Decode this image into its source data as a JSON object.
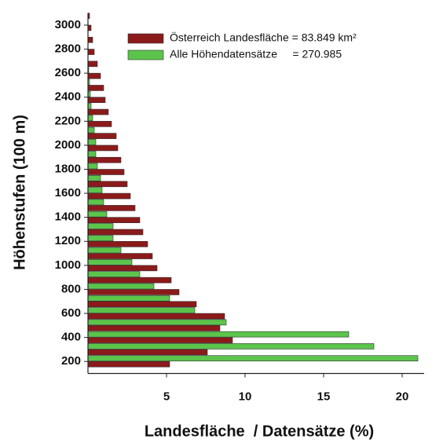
{
  "chart_data": {
    "type": "hbar",
    "xlabel": "Landesfläche  / Datensätze (%)",
    "ylabel": "Höhenstufen (100 m)",
    "y": [
      200,
      300,
      400,
      500,
      600,
      700,
      800,
      900,
      1000,
      1100,
      1200,
      1300,
      1400,
      1500,
      1600,
      1700,
      1800,
      1900,
      2000,
      2100,
      2200,
      2300,
      2400,
      2500,
      2600,
      2700,
      2800,
      2900,
      3000,
      3100
    ],
    "series": [
      {
        "name": "Österreich Landesfläche = 83.849 km²",
        "color": "#8b1a1a",
        "values": [
          5.2,
          7.6,
          9.2,
          8.4,
          8.7,
          6.9,
          5.8,
          5.3,
          4.4,
          4.1,
          3.8,
          3.5,
          3.3,
          3.0,
          2.7,
          2.5,
          2.3,
          2.1,
          1.9,
          1.8,
          1.5,
          1.3,
          1.1,
          1.0,
          0.8,
          0.6,
          0.4,
          0.3,
          0.2,
          0.1
        ]
      },
      {
        "name": "Alle Höhendatensätze     = 270.985",
        "color": "#5cc44c",
        "values": [
          21,
          18.2,
          16.6,
          8.8,
          6.8,
          5.2,
          4.2,
          3.3,
          2.8,
          2.1,
          1.6,
          1.6,
          1.2,
          1.0,
          0.9,
          0.8,
          0.6,
          0.5,
          0.5,
          0.4,
          0.3,
          0.2,
          0.15,
          0.1,
          0.05,
          null,
          null,
          null,
          null,
          null
        ]
      }
    ],
    "xlim": [
      0,
      21.4
    ],
    "xticks": [
      5,
      10,
      15,
      20
    ],
    "ylim": [
      100,
      3100
    ],
    "yticks": [
      200,
      400,
      600,
      800,
      1000,
      1200,
      1400,
      1600,
      1800,
      2000,
      2200,
      2400,
      2600,
      2800,
      3000
    ],
    "legend": "top-right"
  }
}
